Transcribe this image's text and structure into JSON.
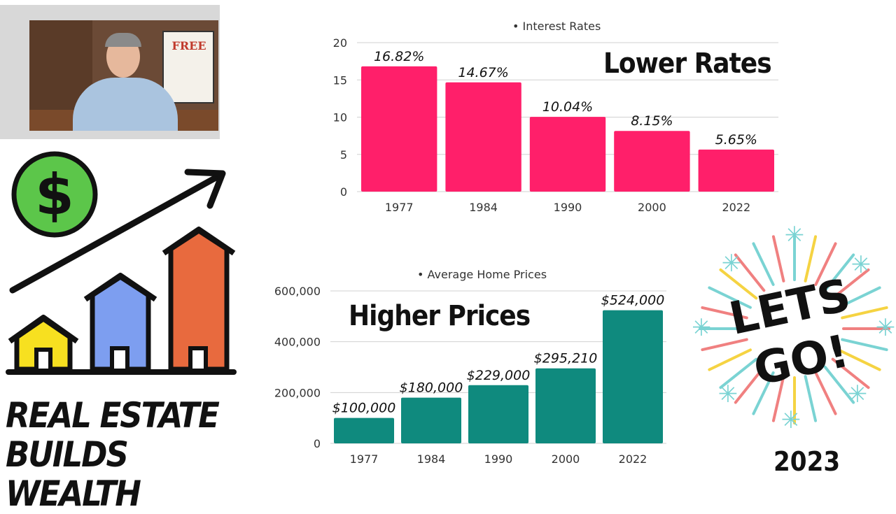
{
  "chart_data": [
    {
      "type": "bar",
      "title": "Interest Rates",
      "overlay_text": "Lower Rates",
      "categories": [
        "1977",
        "1984",
        "1990",
        "2000",
        "2022"
      ],
      "values": [
        16.82,
        14.67,
        10.04,
        8.15,
        5.65
      ],
      "data_labels": [
        "16.82%",
        "14.67%",
        "10.04%",
        "8.15%",
        "5.65%"
      ],
      "yticks": [
        "0",
        "5",
        "10",
        "15",
        "20"
      ],
      "ylim": [
        0,
        20
      ],
      "grid": true,
      "bar_color": "#ff1f6a",
      "xlabel": "",
      "ylabel": ""
    },
    {
      "type": "bar",
      "title": "Average Home Prices",
      "overlay_text": "Higher Prices",
      "categories": [
        "1977",
        "1984",
        "1990",
        "2000",
        "2022"
      ],
      "values": [
        100000,
        180000,
        229000,
        295210,
        524000
      ],
      "data_labels": [
        "$100,000",
        "$180,000",
        "$229,000",
        "$295,210",
        "$524,000"
      ],
      "yticks": [
        "0",
        "200,000",
        "400,000",
        "600,000"
      ],
      "ylim": [
        0,
        600000
      ],
      "grid": true,
      "bar_color": "#0f8a7e",
      "xlabel": "",
      "ylabel": ""
    }
  ],
  "tagline": {
    "line1": "REAL ESTATE",
    "line2": "BUILDS WEALTH"
  },
  "celebration": {
    "text": "LETS GO!",
    "year": "2023"
  },
  "webcam": {
    "board_text": "FREE"
  },
  "icons": [
    "dollar-coin-icon",
    "growth-arrow-icon",
    "house-icon"
  ],
  "colors": {
    "coin": "#5cc64a",
    "house_small": "#f7e020",
    "house_mid": "#7d9ef0",
    "house_tall": "#e86a3e"
  }
}
